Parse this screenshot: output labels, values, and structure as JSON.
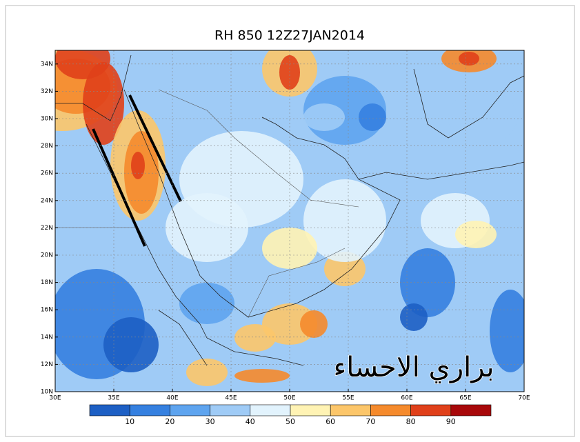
{
  "title": "RH 850 12Z27JAN2014",
  "lat_labels": [
    "34N",
    "32N",
    "30N",
    "28N",
    "26N",
    "24N",
    "22N",
    "20N",
    "18N",
    "16N",
    "14N",
    "12N",
    "10N"
  ],
  "lon_labels": [
    "30E",
    "35E",
    "40E",
    "45E",
    "50E",
    "55E",
    "60E",
    "65E",
    "70E"
  ],
  "colorbar": {
    "labels": [
      "10",
      "20",
      "30",
      "40",
      "50",
      "60",
      "70",
      "80",
      "90"
    ],
    "colors": [
      "#1d5fc4",
      "#3580e0",
      "#5ea4ef",
      "#9fcbf6",
      "#e2f3fd",
      "#fff3b4",
      "#fcc66a",
      "#f58a2c",
      "#e0401a",
      "#a8080a"
    ]
  },
  "watermark": "براري الاحساء"
}
